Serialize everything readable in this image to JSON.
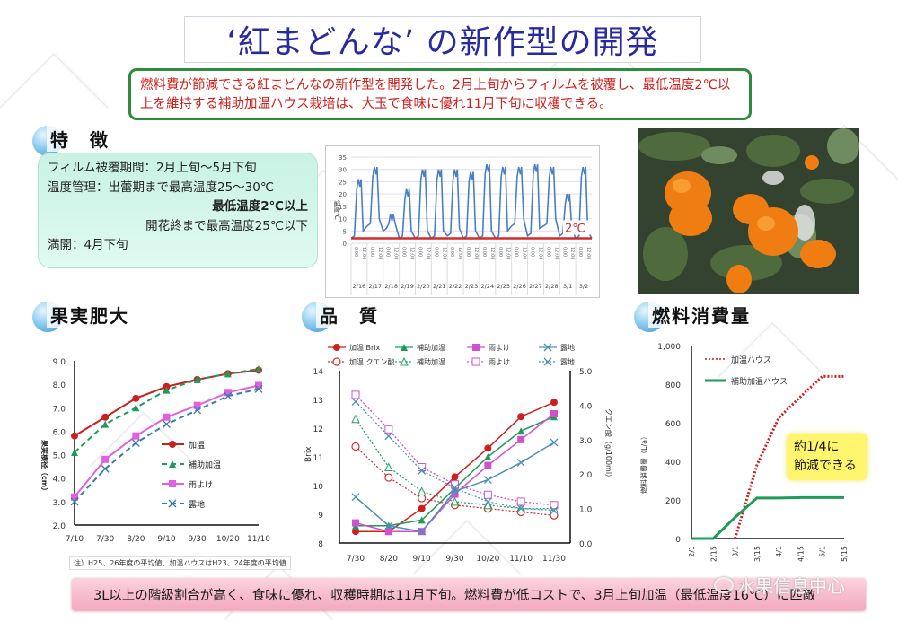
{
  "page": {
    "title": "‘紅まどんな’ の新作型の開発",
    "summary": "燃料費が節減できる紅まどんなの新作型を開発した。2月上旬からフィルムを被覆し、最低温度2℃以上を維持する補助加温ハウス栽培は、大玉で食味に優れ11月下旬に収穫できる。",
    "bottom_conclusion": "3L以上の階級割合が高く、食味に優れ、収穫時期は11月下旬。燃料費が低コストで、3月上旬加温（最低温度16℃）に匹敵",
    "watermark": "水果信息中心",
    "colors": {
      "title_text": "#2a2aa0",
      "summary_text": "#d0201c",
      "summary_border": "#2e8b3a",
      "feature_bg": "#c8f2e4",
      "bottom_bar": "#f3a9bf",
      "heated": "#cc1f1f",
      "aux_heated": "#1f9a5a",
      "rain_shelter": "#e060e0",
      "open_field": "#3a7ab0"
    }
  },
  "features": {
    "heading": "特　徴",
    "rows": [
      "フィルム被覆期間：2月上旬～5月下旬",
      "温度管理：出蕾期まで最高温度25～30℃",
      "最低温度2℃以上",
      "開花終まで最高温度25℃以下",
      "満開：4月下旬"
    ]
  },
  "photo": {
    "alt": "orange-fruit-on-tree"
  },
  "sections": {
    "fruit_growth": "果実肥大",
    "quality": "品　質",
    "fuel": "燃料消費量"
  },
  "note": "注）H25、26年度の平均値、加温ハウスはH23、24年度の平均値",
  "callout": {
    "line1": "約1/4に",
    "line2": "節減できる"
  },
  "chart_data": [
    {
      "id": "temperature",
      "type": "line",
      "title": "",
      "ylabel": "温度℃",
      "ylim": [
        0,
        35
      ],
      "yticks": [
        0,
        5,
        10,
        15,
        20,
        25,
        30,
        35
      ],
      "categories": [
        "2/16",
        "2/17",
        "2/18",
        "2/19",
        "2/20",
        "2/21",
        "2/22",
        "2/23",
        "2/24",
        "2/25",
        "2/26",
        "2/27",
        "2/28",
        "3/1",
        "3/2"
      ],
      "sub_ticks": [
        "0:00",
        "12:00"
      ],
      "daily_max": [
        26,
        31,
        12,
        22,
        30,
        30,
        30,
        29,
        32,
        31,
        31,
        32,
        31,
        20,
        31
      ],
      "daily_min": [
        2,
        7,
        5,
        2,
        2,
        2,
        3,
        2,
        2,
        2,
        7,
        3,
        7,
        3,
        2
      ],
      "threshold_line": {
        "value": 2,
        "label": "2℃",
        "color": "#d42a2a"
      },
      "series_color": "#4a7fc0"
    },
    {
      "id": "fruit_growth",
      "type": "line",
      "title": "果実肥大",
      "xlabel": "",
      "ylabel": "果実横径（cm）",
      "ylim": [
        2.0,
        9.0
      ],
      "yticks": [
        "2.0",
        "3.0",
        "4.0",
        "5.0",
        "6.0",
        "7.0",
        "8.0",
        "9.0"
      ],
      "categories": [
        "7/10",
        "7/30",
        "8/20",
        "9/10",
        "9/30",
        "10/20",
        "11/10"
      ],
      "legend_position": "right-middle",
      "series": [
        {
          "name": "加温",
          "values": [
            5.8,
            6.6,
            7.4,
            7.9,
            8.2,
            8.45,
            8.6
          ],
          "color": "#cc1f1f",
          "marker": "circle",
          "style": "solid"
        },
        {
          "name": "補助加温",
          "values": [
            5.1,
            6.3,
            7.0,
            7.75,
            8.2,
            8.45,
            8.65
          ],
          "color": "#1f9a5a",
          "marker": "triangle",
          "style": "dashed"
        },
        {
          "name": "雨よけ",
          "values": [
            3.2,
            4.8,
            5.8,
            6.6,
            7.1,
            7.65,
            7.95
          ],
          "color": "#e060e0",
          "marker": "square",
          "style": "solid"
        },
        {
          "name": "露地",
          "values": [
            3.0,
            4.4,
            5.5,
            6.3,
            6.9,
            7.5,
            7.8
          ],
          "color": "#3a7ab0",
          "marker": "x",
          "style": "dashed"
        }
      ]
    },
    {
      "id": "quality",
      "type": "line",
      "title": "品　質",
      "ylabel": "Brix",
      "y2label": "クエン酸（g/100ml）",
      "ylim": [
        8,
        14
      ],
      "y2lim": [
        0.0,
        5.0
      ],
      "yticks": [
        "8",
        "9",
        "10",
        "11",
        "12",
        "13",
        "14"
      ],
      "y2ticks": [
        "0.0",
        "1.0",
        "2.0",
        "3.0",
        "4.0",
        "5.0"
      ],
      "categories": [
        "7/30",
        "8/20",
        "9/10",
        "9/30",
        "10/20",
        "11/10",
        "11/30"
      ],
      "legend_position": "top",
      "series": [
        {
          "name": "加温 Brix",
          "axis": "left",
          "values": [
            8.4,
            8.4,
            9.2,
            10.3,
            11.3,
            12.4,
            12.9
          ],
          "color": "#cc1f1f",
          "marker": "circle",
          "style": "solid"
        },
        {
          "name": "補助加温",
          "axis": "left",
          "values": [
            8.6,
            8.6,
            8.8,
            9.9,
            11.0,
            11.9,
            12.4
          ],
          "color": "#1f9a5a",
          "marker": "triangle",
          "style": "solid"
        },
        {
          "name": "雨よけ",
          "axis": "left",
          "values": [
            8.7,
            8.4,
            8.4,
            9.7,
            10.7,
            11.6,
            12.5
          ],
          "color": "#d050d0",
          "marker": "square",
          "style": "solid"
        },
        {
          "name": "露地",
          "axis": "left",
          "values": [
            9.6,
            8.6,
            8.4,
            9.8,
            10.2,
            10.8,
            11.5
          ],
          "color": "#4a90b8",
          "marker": "x",
          "style": "solid"
        },
        {
          "name": "加温 クエン酸",
          "axis": "right",
          "values": [
            2.8,
            1.9,
            1.3,
            1.1,
            1.0,
            0.9,
            0.8
          ],
          "color": "#cc3333",
          "marker": "circle-open",
          "style": "dotted"
        },
        {
          "name": "補助加温",
          "axis": "right",
          "values": [
            3.6,
            2.2,
            1.5,
            1.2,
            1.1,
            1.0,
            1.0
          ],
          "color": "#2aa06a",
          "marker": "triangle-open",
          "style": "dotted"
        },
        {
          "name": "雨よけ",
          "axis": "right",
          "values": [
            4.3,
            3.3,
            2.2,
            1.7,
            1.4,
            1.2,
            1.1
          ],
          "color": "#d050d0",
          "marker": "square-open",
          "style": "dotted"
        },
        {
          "name": "露地",
          "axis": "right",
          "values": [
            4.1,
            3.1,
            2.1,
            1.6,
            1.2,
            1.0,
            0.95
          ],
          "color": "#4a90b8",
          "marker": "x",
          "style": "dotted"
        }
      ]
    },
    {
      "id": "fuel",
      "type": "line",
      "title": "燃料消費量",
      "ylabel": "燃料消費量（L/a）",
      "ylim": [
        0,
        1000
      ],
      "yticks": [
        "0",
        "200",
        "400",
        "600",
        "800",
        "1,000"
      ],
      "categories": [
        "2/1",
        "2/15",
        "3/1",
        "3/15",
        "4/1",
        "4/15",
        "5/1",
        "5/15"
      ],
      "legend_position": "top-left",
      "series": [
        {
          "name": "加温ハウス",
          "values": [
            null,
            null,
            0,
            380,
            625,
            735,
            840,
            840
          ],
          "color": "#cc1f1f",
          "style": "dotted"
        },
        {
          "name": "補助加温ハウス",
          "values": [
            0,
            0,
            110,
            210,
            210,
            212,
            212,
            212
          ],
          "color": "#1f9a5a",
          "style": "solid"
        }
      ],
      "annotation": "約1/4に節減できる"
    }
  ]
}
